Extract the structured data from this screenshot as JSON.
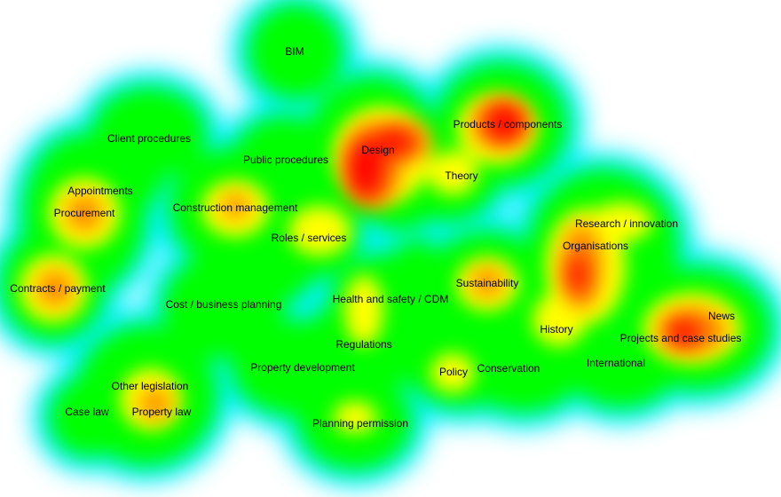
{
  "colors": {
    "low": "#00f0ff",
    "mid": "#00ff00",
    "mid_high": "#ffff00",
    "high": "#ff7f00",
    "peak": "#ff0000",
    "background": "#ffffff"
  },
  "terms": [
    {
      "id": "bim",
      "label": "BIM",
      "intensity": 0.35
    },
    {
      "id": "client-procedures",
      "label": "Client procedures",
      "intensity": 0.45
    },
    {
      "id": "public-procedures",
      "label": "Public procedures",
      "intensity": 0.45
    },
    {
      "id": "design",
      "label": "Design",
      "intensity": 1.0
    },
    {
      "id": "products-components",
      "label": "Products / components",
      "intensity": 1.0
    },
    {
      "id": "theory",
      "label": "Theory",
      "intensity": 0.7
    },
    {
      "id": "appointments",
      "label": "Appointments",
      "intensity": 0.55
    },
    {
      "id": "procurement",
      "label": "Procurement",
      "intensity": 0.8
    },
    {
      "id": "construction-management",
      "label": "Construction management",
      "intensity": 0.8
    },
    {
      "id": "roles-services",
      "label": "Roles / services",
      "intensity": 0.65
    },
    {
      "id": "research-innovation",
      "label": "Research / innovation",
      "intensity": 0.75
    },
    {
      "id": "organisations",
      "label": "Organisations",
      "intensity": 0.85
    },
    {
      "id": "contracts-payment",
      "label": "Contracts / payment",
      "intensity": 0.85
    },
    {
      "id": "sustainability",
      "label": "Sustainability",
      "intensity": 0.85
    },
    {
      "id": "health-and-safety-cdm",
      "label": "Health and safety / CDM",
      "intensity": 0.6
    },
    {
      "id": "cost-business-planning",
      "label": "Cost / business planning",
      "intensity": 0.55
    },
    {
      "id": "news",
      "label": "News",
      "intensity": 0.9
    },
    {
      "id": "history",
      "label": "History",
      "intensity": 0.75
    },
    {
      "id": "regulations",
      "label": "Regulations",
      "intensity": 0.6
    },
    {
      "id": "projects-and-case-studies",
      "label": "Projects and case studies",
      "intensity": 0.95
    },
    {
      "id": "property-development",
      "label": "Property development",
      "intensity": 0.5
    },
    {
      "id": "international",
      "label": "International",
      "intensity": 0.5
    },
    {
      "id": "policy",
      "label": "Policy",
      "intensity": 0.55
    },
    {
      "id": "conservation",
      "label": "Conservation",
      "intensity": 0.5
    },
    {
      "id": "other-legislation",
      "label": "Other legislation",
      "intensity": 0.75
    },
    {
      "id": "case-law",
      "label": "Case law",
      "intensity": 0.45
    },
    {
      "id": "property-law",
      "label": "Property law",
      "intensity": 0.85
    },
    {
      "id": "planning-permission",
      "label": "Planning permission",
      "intensity": 0.55
    }
  ]
}
